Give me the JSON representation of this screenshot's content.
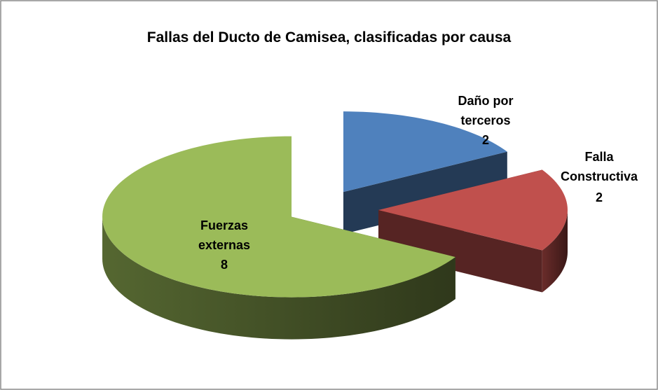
{
  "chart_data": {
    "type": "pie",
    "title": "Fallas del Ducto de Camisea, clasificadas por causa",
    "categories": [
      "Daño por terceros",
      "Falla Constructiva",
      "Fuerzas externas"
    ],
    "values": [
      2,
      2,
      8
    ],
    "colors": [
      "#4f81bd",
      "#c0504d",
      "#9bbb59"
    ]
  }
}
